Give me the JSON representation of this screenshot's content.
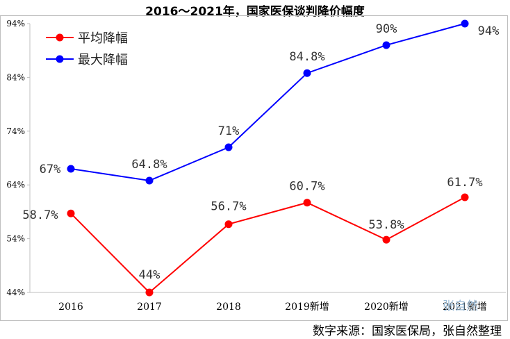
{
  "chart_data": {
    "type": "line",
    "title": "2016～2021年，国家医保谈判降价幅度",
    "categories": [
      "2016",
      "2017",
      "2018",
      "2019新增",
      "2020新增",
      "2021新增"
    ],
    "ylim": [
      44,
      94
    ],
    "yticks": [
      "94%",
      "84%",
      "74%",
      "64%",
      "54%",
      "44%"
    ],
    "ytick_values": [
      94,
      84,
      74,
      64,
      54,
      44
    ],
    "grid": false,
    "legend": "top-left",
    "series": [
      {
        "name": "平均降幅",
        "color": "#ff0000",
        "values": [
          58.7,
          44,
          56.7,
          60.7,
          53.8,
          61.7
        ],
        "labels": [
          "58.7%",
          "44%",
          "56.7%",
          "60.7%",
          "53.8%",
          "61.7%"
        ]
      },
      {
        "name": "最大降幅",
        "color": "#0000ff",
        "values": [
          67,
          64.8,
          71,
          84.8,
          90,
          94
        ],
        "labels": [
          "67%",
          "64.8%",
          "71%",
          "84.8%",
          "90%",
          "94%"
        ]
      }
    ]
  },
  "source_note": "数字来源：国家医保局，张自然整理",
  "watermark": "张自然"
}
